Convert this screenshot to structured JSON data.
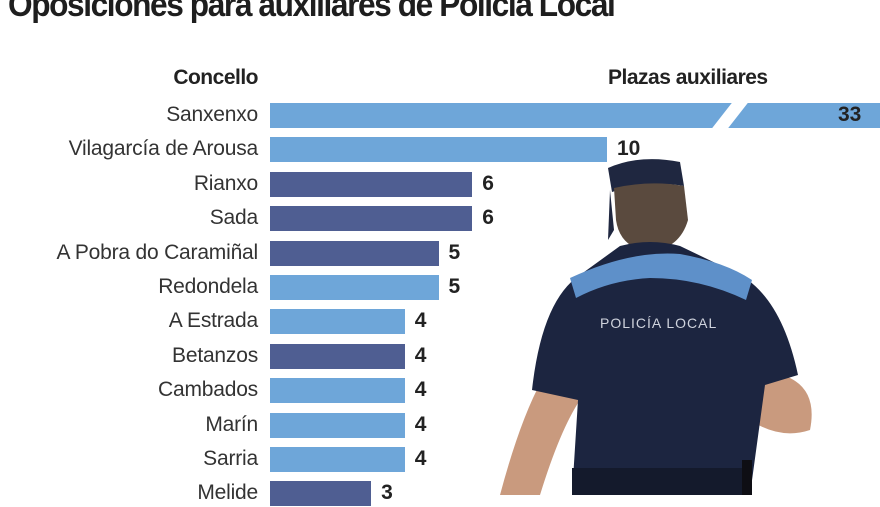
{
  "title": "Oposiciones para auxiliares de Policía Local",
  "headers": {
    "left": "Concello",
    "right": "Plazas auxiliares"
  },
  "colors": {
    "light": "#6ea6d9",
    "dark": "#4f5e92",
    "text": "#222222"
  },
  "rows": [
    {
      "label": "Sanxenxo",
      "value": "33",
      "color": "light"
    },
    {
      "label": "Vilagarcía de Arousa",
      "value": "10",
      "color": "light"
    },
    {
      "label": "Rianxo",
      "value": "6",
      "color": "dark"
    },
    {
      "label": "Sada",
      "value": "6",
      "color": "dark"
    },
    {
      "label": "A Pobra do Caramiñal",
      "value": "5",
      "color": "dark"
    },
    {
      "label": "Redondela",
      "value": "5",
      "color": "light"
    },
    {
      "label": "A Estrada",
      "value": "4",
      "color": "light"
    },
    {
      "label": "Betanzos",
      "value": "4",
      "color": "dark"
    },
    {
      "label": "Cambados",
      "value": "4",
      "color": "light"
    },
    {
      "label": "Marín",
      "value": "4",
      "color": "light"
    },
    {
      "label": "Sarria",
      "value": "4",
      "color": "light"
    },
    {
      "label": "Melide",
      "value": "3",
      "color": "dark"
    }
  ],
  "photo": {
    "caption_on_shirt": "POLICÍA LOCAL"
  },
  "chart_data": {
    "type": "bar",
    "orientation": "horizontal",
    "title": "Oposiciones para auxiliares de Policía Local",
    "xlabel": "Plazas auxiliares",
    "ylabel": "Concello",
    "categories": [
      "Sanxenxo",
      "Vilagarcía de Arousa",
      "Rianxo",
      "Sada",
      "A Pobra do Caramiñal",
      "Redondela",
      "A Estrada",
      "Betanzos",
      "Cambados",
      "Marín",
      "Sarria",
      "Melide"
    ],
    "values": [
      33,
      10,
      6,
      6,
      5,
      5,
      4,
      4,
      4,
      4,
      4,
      3
    ],
    "bar_colors": [
      "#6ea6d9",
      "#6ea6d9",
      "#4f5e92",
      "#4f5e92",
      "#4f5e92",
      "#6ea6d9",
      "#6ea6d9",
      "#4f5e92",
      "#6ea6d9",
      "#6ea6d9",
      "#6ea6d9",
      "#4f5e92"
    ],
    "annotations": [
      "Sanxenxo bar shown with axis break (truncated)"
    ],
    "grid": false,
    "legend": null,
    "data_labels": true
  }
}
